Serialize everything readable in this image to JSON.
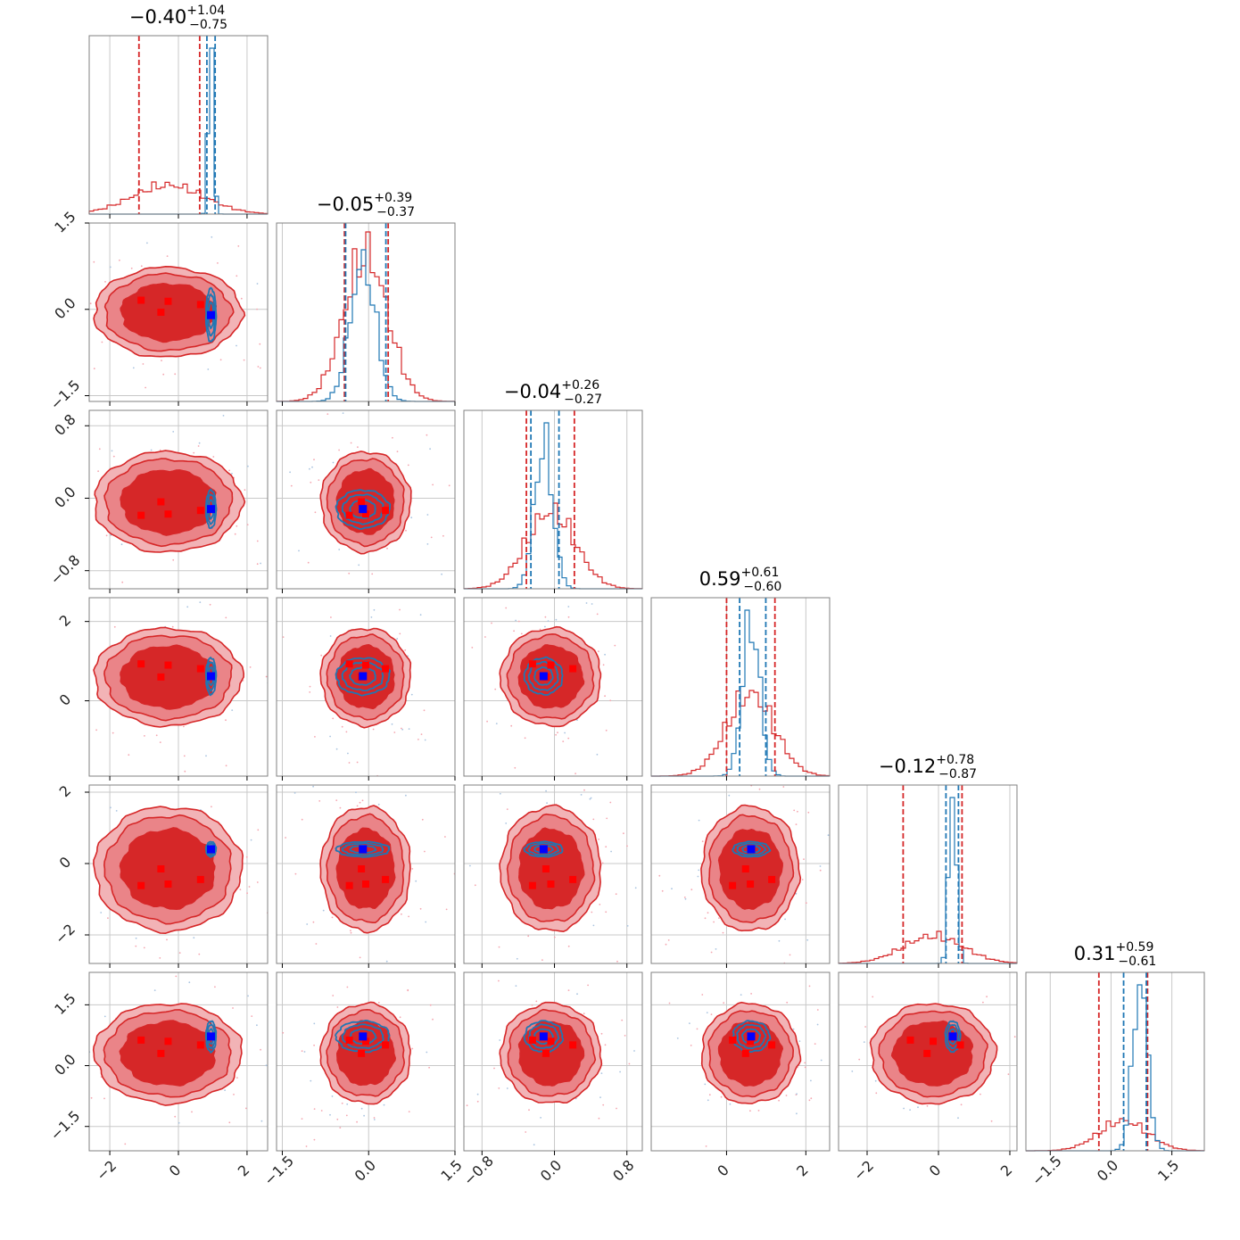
{
  "chart_data": {
    "type": "corner",
    "dimensions": 6,
    "colors": {
      "prior": "#d62728",
      "posterior": "#1f77b4",
      "marker_prior": "#ff0000",
      "marker_posterior": "#0000ff",
      "grid": "#c8c8c8"
    },
    "titles": [
      {
        "value": "−0.40",
        "upper": "+1.04",
        "lower": "−0.75"
      },
      {
        "value": "−0.05",
        "upper": "+0.39",
        "lower": "−0.37"
      },
      {
        "value": "−0.04",
        "upper": "+0.26",
        "lower": "−0.27"
      },
      {
        "value": "0.59",
        "upper": "+0.61",
        "lower": "−0.60"
      },
      {
        "value": "−0.12",
        "upper": "+0.78",
        "lower": "−0.87"
      },
      {
        "value": "0.31",
        "upper": "+0.59",
        "lower": "−0.61"
      }
    ],
    "ranges": [
      [
        -2.6,
        2.6
      ],
      [
        -1.6,
        1.5
      ],
      [
        -1.0,
        0.97
      ],
      [
        -1.9,
        2.6
      ],
      [
        -2.8,
        2.2
      ],
      [
        -2.1,
        2.3
      ]
    ],
    "x_ticks": [
      {
        "values": [
          -2,
          0,
          2
        ],
        "labels": [
          "−2",
          "0",
          "2"
        ]
      },
      {
        "values": [
          -1.5,
          0.0,
          1.5
        ],
        "labels": [
          "−1.5",
          "0.0",
          "1.5"
        ]
      },
      {
        "values": [
          -0.8,
          0.0,
          0.8
        ],
        "labels": [
          "−0.8",
          "0.0",
          "0.8"
        ]
      },
      {
        "values": [
          0,
          2
        ],
        "labels": [
          "0",
          "2"
        ]
      },
      {
        "values": [
          -2,
          0,
          2
        ],
        "labels": [
          "−2",
          "0",
          "2"
        ]
      },
      {
        "values": [
          -1.5,
          0.0,
          1.5
        ],
        "labels": [
          "−1.5",
          "0.0",
          "1.5"
        ]
      }
    ],
    "y_ticks": [
      null,
      {
        "values": [
          -1.5,
          0.0,
          1.5
        ],
        "labels": [
          "−1.5",
          "0.0",
          "1.5"
        ]
      },
      {
        "values": [
          -0.8,
          0.0,
          0.8
        ],
        "labels": [
          "−0.8",
          "0.0",
          "0.8"
        ]
      },
      {
        "values": [
          0,
          2
        ],
        "labels": [
          "0",
          "2"
        ]
      },
      {
        "values": [
          -2,
          0,
          2
        ],
        "labels": [
          "−2",
          "0",
          "2"
        ]
      },
      {
        "values": [
          -1.5,
          0.0,
          1.5
        ],
        "labels": [
          "−1.5",
          "0.0",
          "1.5"
        ]
      }
    ],
    "quantiles": {
      "prior": [
        [
          -1.15,
          0.62
        ],
        [
          -0.42,
          0.34
        ],
        [
          -0.31,
          0.22
        ],
        [
          0.0,
          1.22
        ],
        [
          -0.99,
          0.66
        ],
        [
          -0.3,
          0.9
        ]
      ],
      "posterior": [
        [
          0.83,
          1.07
        ],
        [
          -0.4,
          0.3
        ],
        [
          -0.26,
          0.05
        ],
        [
          0.33,
          0.99
        ],
        [
          0.21,
          0.56
        ],
        [
          0.31,
          0.87
        ]
      ]
    },
    "posterior_center": [
      0.95,
      -0.1,
      -0.12,
      0.62,
      0.4,
      0.72
    ],
    "posterior_sigma": [
      0.07,
      0.22,
      0.1,
      0.22,
      0.1,
      0.18
    ],
    "prior_center": [
      -0.3,
      -0.05,
      -0.04,
      0.6,
      -0.15,
      0.3
    ],
    "prior_sigma": [
      1.05,
      0.38,
      0.27,
      0.6,
      0.85,
      0.6
    ],
    "marker_points_prior": [
      [
        -0.75,
        0.55
      ],
      [
        0.0,
        0.5
      ],
      [
        -0.2,
        0.0
      ],
      [
        0.9,
        0.35
      ]
    ]
  }
}
